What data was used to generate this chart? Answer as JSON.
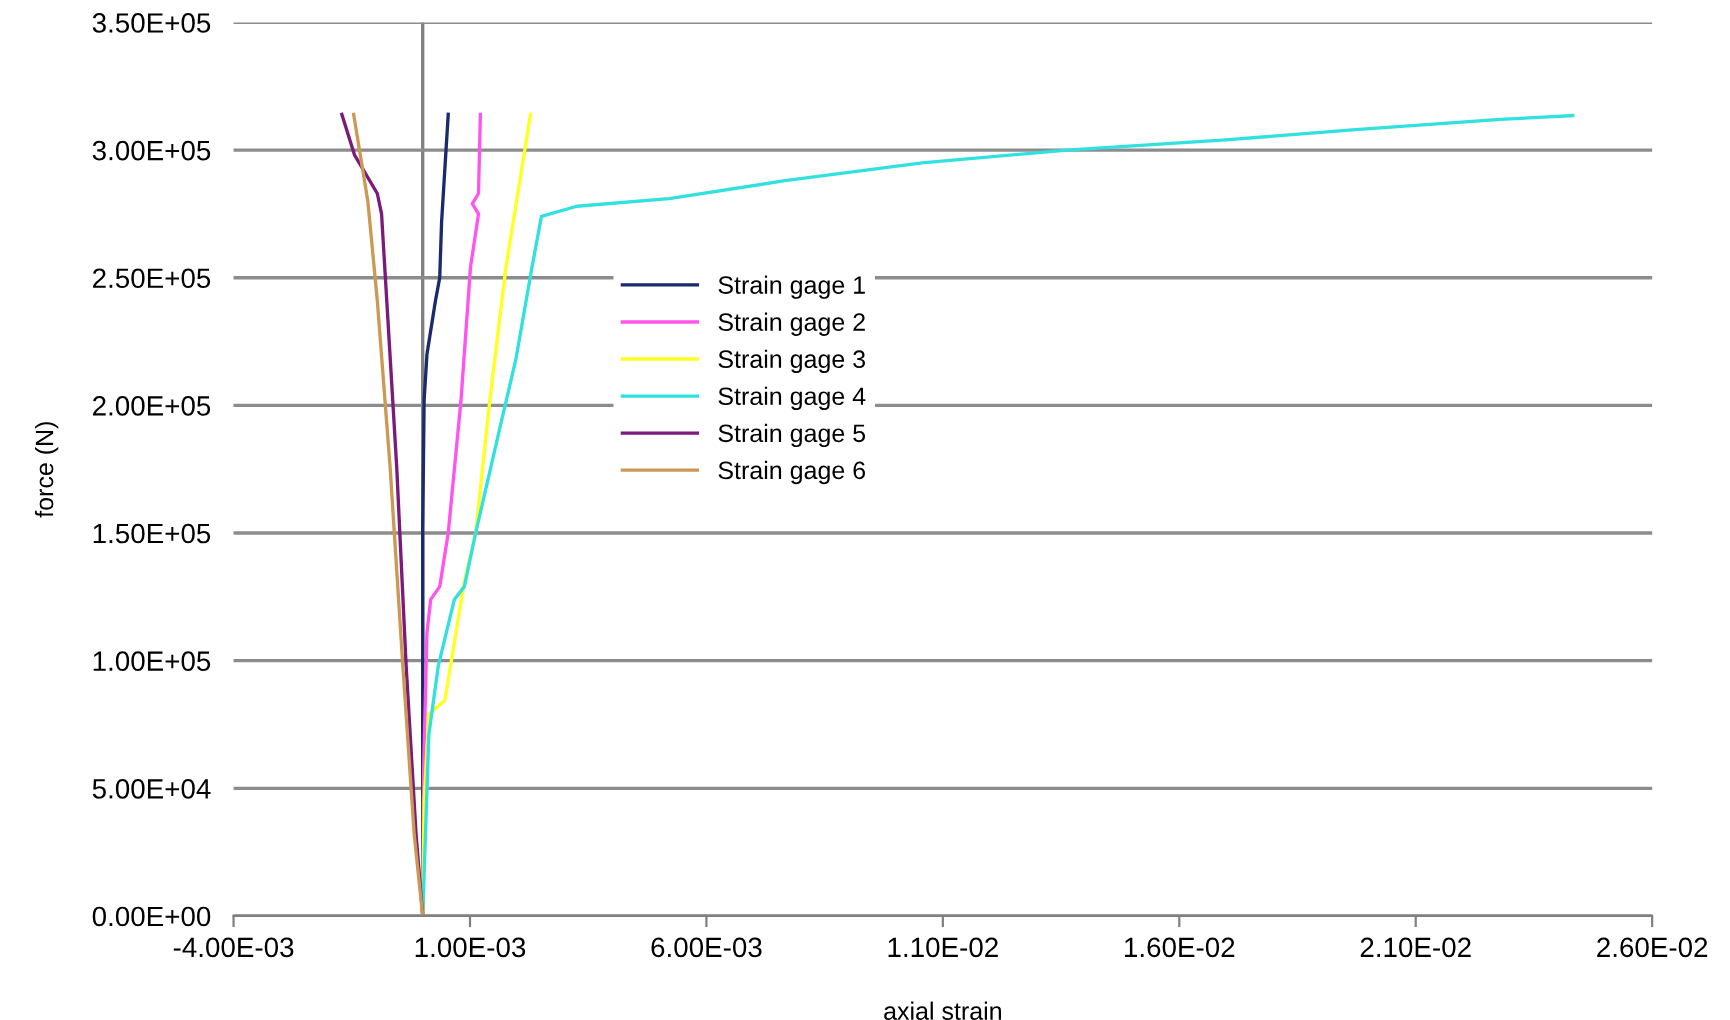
{
  "chart_data": {
    "type": "line",
    "xlabel": "axial strain",
    "ylabel": "force (N)",
    "xlim": [
      -0.004,
      0.026
    ],
    "xticks": [
      {
        "value": -0.004,
        "label": "-4.00E-03"
      },
      {
        "value": 0.001,
        "label": "1.00E-03"
      },
      {
        "value": 0.006,
        "label": "6.00E-03"
      },
      {
        "value": 0.011,
        "label": "1.10E-02"
      },
      {
        "value": 0.016,
        "label": "1.60E-02"
      },
      {
        "value": 0.021,
        "label": "2.10E-02"
      },
      {
        "value": 0.026,
        "label": "2.60E-02"
      }
    ],
    "ylim": [
      0,
      350000
    ],
    "yticks": [
      {
        "value": 0,
        "label": "0.00E+00"
      },
      {
        "value": 50000,
        "label": "5.00E+04"
      },
      {
        "value": 100000,
        "label": "1.00E+05"
      },
      {
        "value": 150000,
        "label": "1.50E+05"
      },
      {
        "value": 200000,
        "label": "2.00E+05"
      },
      {
        "value": 250000,
        "label": "2.50E+05"
      },
      {
        "value": 300000,
        "label": "3.00E+05"
      },
      {
        "value": 350000,
        "label": "3.50E+05"
      }
    ],
    "grid": "y",
    "legend": "center",
    "marker": "none",
    "line_style": "solid",
    "ref_lines": [
      {
        "axis": "x",
        "value": 0,
        "color": "#808080"
      }
    ],
    "series": [
      {
        "name": "Strain gage 1",
        "color": "#1a2a6c",
        "x": [
          0,
          0,
          0,
          3e-05,
          9e-05,
          0.00027,
          0.00036,
          0.0004,
          0.00047,
          0.00054
        ],
        "values": [
          0,
          97600,
          152000,
          202000,
          220000,
          241000,
          250000,
          272000,
          293000,
          314000
        ]
      },
      {
        "name": "Strain gage 2",
        "color": "#ff55ee",
        "x": [
          0,
          2e-05,
          9e-05,
          0.00017,
          0.00036,
          0.00054,
          0.00081,
          0.00101,
          0.00118,
          0.00105,
          0.00118,
          0.00122
        ],
        "values": [
          0,
          58000,
          111000,
          124000,
          129000,
          150000,
          202000,
          254000,
          275000,
          279000,
          283000,
          314000
        ]
      },
      {
        "name": "Strain gage 3",
        "color": "#ffff22",
        "x": [
          0,
          3e-05,
          0.00013,
          0.00047,
          0.00088,
          0.00112,
          0.00142,
          0.00176,
          0.00228
        ],
        "values": [
          0,
          45000,
          79000,
          84500,
          131000,
          150000,
          202000,
          254000,
          314000
        ]
      },
      {
        "name": "Strain gage 4",
        "color": "#33e0e0",
        "x": [
          0,
          0.00013,
          0.00033,
          0.00067,
          0.00088,
          0.00112,
          0.00163,
          0.00197,
          0.00231,
          0.00251,
          0.00326,
          0.00521,
          0.00766,
          0.01056,
          0.01362,
          0.01698,
          0.01973,
          0.02279,
          0.02432
        ],
        "values": [
          0,
          71000,
          98000,
          124000,
          129000,
          150000,
          191000,
          218000,
          254000,
          274000,
          278000,
          281000,
          288000,
          295000,
          300000,
          304000,
          308000,
          312000,
          313500
        ]
      },
      {
        "name": "Strain gage 5",
        "color": "#7a1a7a",
        "x": [
          0,
          -0.00014,
          -0.00035,
          -0.00055,
          -0.00076,
          -0.00087,
          -0.00096,
          -0.00144,
          -0.00171
        ],
        "values": [
          0,
          32000,
          98000,
          176000,
          241000,
          275000,
          283000,
          298000,
          314000
        ]
      },
      {
        "name": "Strain gage 6",
        "color": "#cc9955",
        "x": [
          0,
          -0.00018,
          -0.00042,
          -0.00069,
          -0.00096,
          -0.00116,
          -0.00146
        ],
        "values": [
          0,
          32000,
          98000,
          176000,
          241000,
          280000,
          314000
        ]
      }
    ]
  }
}
